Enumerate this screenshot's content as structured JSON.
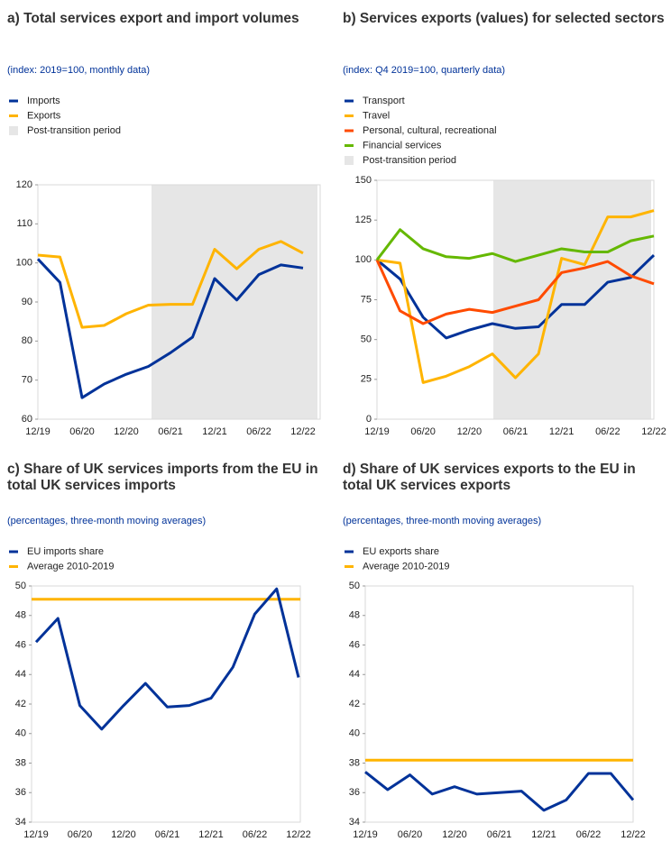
{
  "chart_data": [
    {
      "type": "line",
      "title": "a) Total services export and import volumes",
      "subtitle": "(index: 2019=100, monthly data)",
      "categories": [
        "12/19",
        null,
        "06/20",
        null,
        "12/20",
        null,
        "06/21",
        null,
        "12/21",
        null,
        "06/22",
        null,
        "12/22"
      ],
      "series": [
        {
          "name": "Imports",
          "color": "#003299",
          "values": [
            101,
            95,
            65.5,
            69,
            71.5,
            73.5,
            77,
            81,
            96,
            90.5,
            97,
            99.5,
            98.7
          ]
        },
        {
          "name": "Exports",
          "color": "#ffb400",
          "values": [
            102,
            101.5,
            83.5,
            84,
            87,
            89.2,
            89.4,
            89.4,
            103.5,
            98.5,
            103.5,
            105.5,
            102.5
          ]
        }
      ],
      "shaded": {
        "name": "Post-transition period",
        "color": "#e6e6e6"
      },
      "ylim": [
        60,
        120
      ],
      "yticks": [
        60,
        70,
        80,
        90,
        100,
        110,
        120
      ]
    },
    {
      "type": "line",
      "title": "b) Services exports (values) for selected sectors",
      "subtitle": "(index: Q4 2019=100, quarterly data)",
      "categories": [
        "12/19",
        null,
        "06/20",
        null,
        "12/20",
        null,
        "06/21",
        null,
        "12/21",
        null,
        "06/22",
        null,
        "12/22"
      ],
      "series": [
        {
          "name": "Transport",
          "color": "#003299",
          "values": [
            100,
            88,
            64,
            51,
            56,
            60,
            57,
            58,
            72,
            72,
            86,
            89,
            103
          ]
        },
        {
          "name": "Travel",
          "color": "#ffb400",
          "values": [
            100,
            98,
            23,
            27,
            33,
            41,
            26,
            41,
            101,
            97,
            127,
            127,
            131
          ]
        },
        {
          "name": "Personal, cultural, recreational",
          "color": "#ff4b00",
          "values": [
            100,
            68,
            60,
            66,
            69,
            67,
            71,
            75,
            92,
            95,
            99,
            90,
            85
          ]
        },
        {
          "name": "Financial services",
          "color": "#65b800",
          "values": [
            100,
            119,
            107,
            102,
            101,
            104,
            99,
            103,
            107,
            105,
            105,
            112,
            115
          ]
        }
      ],
      "shaded": {
        "name": "Post-transition period",
        "color": "#e6e6e6"
      },
      "ylim": [
        0,
        150
      ],
      "yticks": [
        0,
        25,
        50,
        75,
        100,
        125,
        150
      ]
    },
    {
      "type": "line",
      "title": "c) Share of UK services imports from the EU in total UK services imports",
      "subtitle": "(percentages, three-month moving averages)",
      "categories": [
        "12/19",
        null,
        "06/20",
        null,
        "12/20",
        null,
        "06/21",
        null,
        "12/21",
        null,
        "06/22",
        null,
        "12/22"
      ],
      "series": [
        {
          "name": "EU imports share",
          "color": "#003299",
          "values": [
            46.2,
            47.8,
            41.9,
            40.3,
            41.9,
            43.4,
            41.8,
            41.9,
            42.4,
            44.5,
            48.1,
            49.8,
            43.8
          ]
        }
      ],
      "reference_line": {
        "name": "Average 2010-2019",
        "color": "#ffb400",
        "value": 49.1
      },
      "ylim": [
        34,
        50
      ],
      "yticks": [
        34,
        36,
        38,
        40,
        42,
        44,
        46,
        48,
        50
      ]
    },
    {
      "type": "line",
      "title": "d) Share of UK services exports to the EU in total UK services exports",
      "subtitle": "(percentages, three-month moving averages)",
      "categories": [
        "12/19",
        null,
        "06/20",
        null,
        "12/20",
        null,
        "06/21",
        null,
        "12/21",
        null,
        "06/22",
        null,
        "12/22"
      ],
      "series": [
        {
          "name": "EU exports share",
          "color": "#003299",
          "values": [
            37.4,
            36.2,
            37.2,
            35.9,
            36.4,
            35.9,
            36.0,
            36.1,
            34.8,
            35.5,
            37.3,
            37.3,
            35.5
          ]
        }
      ],
      "reference_line": {
        "name": "Average 2010-2019",
        "color": "#ffb400",
        "value": 38.2
      },
      "ylim": [
        34,
        50
      ],
      "yticks": [
        34,
        36,
        38,
        40,
        42,
        44,
        46,
        48,
        50
      ]
    }
  ]
}
